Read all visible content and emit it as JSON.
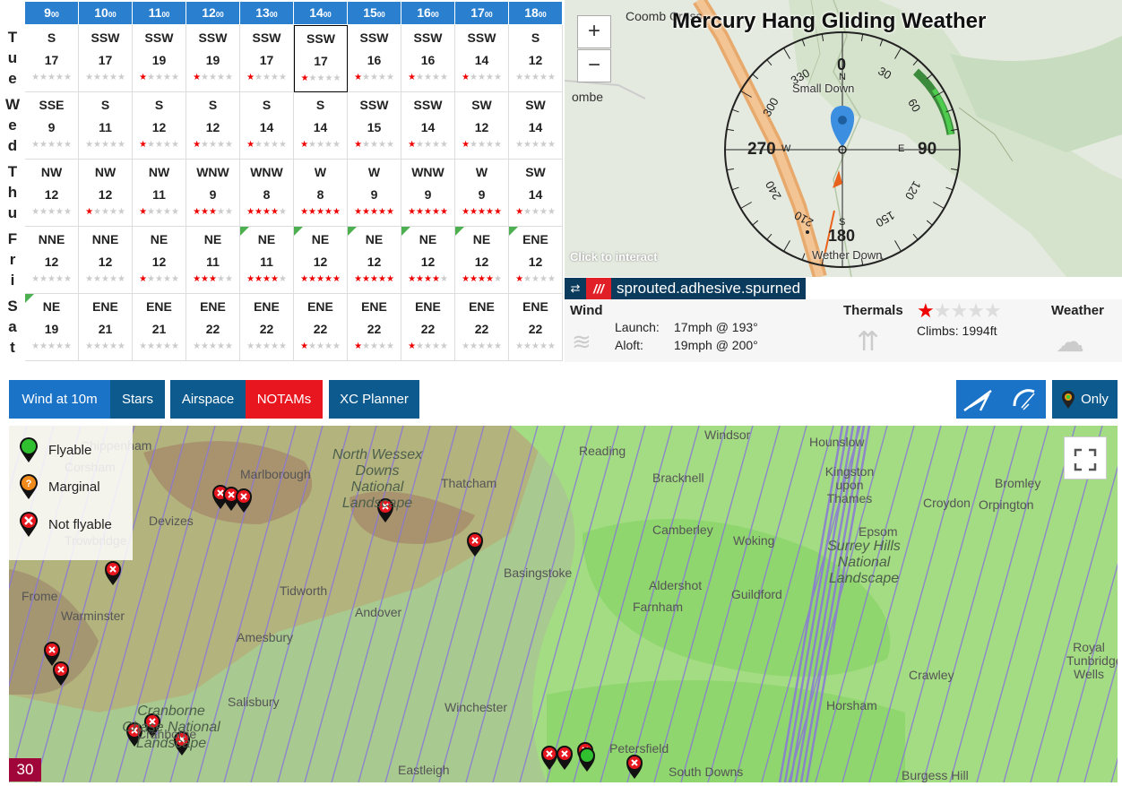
{
  "forecast": {
    "hours": [
      "9",
      "10",
      "11",
      "12",
      "13",
      "14",
      "15",
      "16",
      "17",
      "18"
    ],
    "hour_suffix": "00",
    "days": [
      {
        "label": [
          "T",
          "u",
          "e"
        ],
        "cells": [
          {
            "dir": "S",
            "speed": "17",
            "stars": 0
          },
          {
            "dir": "SSW",
            "speed": "17",
            "stars": 0
          },
          {
            "dir": "SSW",
            "speed": "19",
            "stars": 1
          },
          {
            "dir": "SSW",
            "speed": "19",
            "stars": 1
          },
          {
            "dir": "SSW",
            "speed": "17",
            "stars": 1
          },
          {
            "dir": "SSW",
            "speed": "17",
            "stars": 1
          },
          {
            "dir": "SSW",
            "speed": "16",
            "stars": 1
          },
          {
            "dir": "SSW",
            "speed": "16",
            "stars": 1
          },
          {
            "dir": "SSW",
            "speed": "14",
            "stars": 1
          },
          {
            "dir": "S",
            "speed": "12",
            "stars": 0
          }
        ]
      },
      {
        "label": [
          "W",
          "e",
          "d"
        ],
        "cells": [
          {
            "dir": "SSE",
            "speed": "9",
            "stars": 0
          },
          {
            "dir": "S",
            "speed": "11",
            "stars": 0
          },
          {
            "dir": "S",
            "speed": "12",
            "stars": 1
          },
          {
            "dir": "S",
            "speed": "12",
            "stars": 1
          },
          {
            "dir": "S",
            "speed": "14",
            "stars": 1
          },
          {
            "dir": "S",
            "speed": "14",
            "stars": 1
          },
          {
            "dir": "SSW",
            "speed": "15",
            "stars": 1
          },
          {
            "dir": "SSW",
            "speed": "14",
            "stars": 1
          },
          {
            "dir": "SW",
            "speed": "12",
            "stars": 1
          },
          {
            "dir": "SW",
            "speed": "14",
            "stars": 0
          }
        ]
      },
      {
        "label": [
          "T",
          "h",
          "u"
        ],
        "cells": [
          {
            "dir": "NW",
            "speed": "12",
            "stars": 0
          },
          {
            "dir": "NW",
            "speed": "12",
            "stars": 1
          },
          {
            "dir": "NW",
            "speed": "11",
            "stars": 1
          },
          {
            "dir": "WNW",
            "speed": "9",
            "stars": 3
          },
          {
            "dir": "WNW",
            "speed": "8",
            "stars": 4
          },
          {
            "dir": "W",
            "speed": "8",
            "stars": 5
          },
          {
            "dir": "W",
            "speed": "9",
            "stars": 5
          },
          {
            "dir": "WNW",
            "speed": "9",
            "stars": 5
          },
          {
            "dir": "W",
            "speed": "9",
            "stars": 5
          },
          {
            "dir": "SW",
            "speed": "14",
            "stars": 1
          }
        ]
      },
      {
        "label": [
          "F",
          "r",
          "i"
        ],
        "cells": [
          {
            "dir": "NNE",
            "speed": "12",
            "stars": 0
          },
          {
            "dir": "NNE",
            "speed": "12",
            "stars": 0
          },
          {
            "dir": "NE",
            "speed": "12",
            "stars": 1
          },
          {
            "dir": "NE",
            "speed": "11",
            "stars": 3
          },
          {
            "dir": "NE",
            "speed": "11",
            "stars": 4,
            "flag": true
          },
          {
            "dir": "NE",
            "speed": "12",
            "stars": 5,
            "flag": true
          },
          {
            "dir": "NE",
            "speed": "12",
            "stars": 5,
            "flag": true
          },
          {
            "dir": "NE",
            "speed": "12",
            "stars": 4,
            "flag": true
          },
          {
            "dir": "NE",
            "speed": "12",
            "stars": 4,
            "flag": true
          },
          {
            "dir": "ENE",
            "speed": "12",
            "stars": 1,
            "flag": true
          }
        ]
      },
      {
        "label": [
          "S",
          "a",
          "t"
        ],
        "cells": [
          {
            "dir": "NE",
            "speed": "19",
            "stars": 0,
            "flag": true
          },
          {
            "dir": "ENE",
            "speed": "21",
            "stars": 0
          },
          {
            "dir": "ENE",
            "speed": "21",
            "stars": 0
          },
          {
            "dir": "ENE",
            "speed": "22",
            "stars": 0
          },
          {
            "dir": "ENE",
            "speed": "22",
            "stars": 0
          },
          {
            "dir": "ENE",
            "speed": "22",
            "stars": 1
          },
          {
            "dir": "ENE",
            "speed": "22",
            "stars": 1
          },
          {
            "dir": "ENE",
            "speed": "22",
            "stars": 1
          },
          {
            "dir": "ENE",
            "speed": "22",
            "stars": 0
          },
          {
            "dir": "ENE",
            "speed": "22",
            "stars": 0
          }
        ]
      }
    ]
  },
  "site": {
    "title": "Mercury Hang Gliding Weather",
    "zoom_in": "+",
    "zoom_out": "−",
    "click_hint": "Click to interact",
    "compass": {
      "n": "0",
      "e": "90",
      "s": "180",
      "w": "270",
      "d30": "30",
      "d60": "60",
      "d120": "120",
      "d150": "150",
      "d210": "210",
      "d240": "240",
      "d300": "300",
      "d330": "330",
      "nl": "N",
      "el": "E",
      "sl": "S",
      "wl": "W"
    },
    "map_labels": {
      "top": "Small Down",
      "bottom": "Wether Down",
      "tl": "Coomb Cross",
      "tl2": "ombe"
    },
    "w3w": {
      "slashes": "///",
      "words": "sprouted.adhesive.spurned"
    },
    "wind": {
      "label": "Wind",
      "launch_label": "Launch:",
      "launch_value": "17mph @ 193°",
      "aloft_label": "Aloft:",
      "aloft_value": "19mph @ 200°"
    },
    "thermals": {
      "label": "Thermals",
      "climbs": "Climbs: 1994ft",
      "stars": 1
    },
    "weather": {
      "label": "Weather"
    }
  },
  "toolbar": {
    "wind": "Wind at 10m",
    "stars": "Stars",
    "airspace": "Airspace",
    "notams": "NOTAMs",
    "xc": "XC Planner",
    "only": "Only",
    "colors": {
      "primary": "#0d5a8f",
      "dark": "#0a3a5c",
      "active": "#1a73c7",
      "notams": "#e8161f"
    }
  },
  "legend": {
    "flyable": "Flyable",
    "marginal": "Marginal",
    "notflyable": "Not flyable",
    "marginal_glyph": "?"
  },
  "map": {
    "badge": "30",
    "places": [
      {
        "t": "Reading"
      },
      {
        "t": "Windsor"
      },
      {
        "t": "Hounslow"
      },
      {
        "t": "Kingston upon Thames"
      },
      {
        "t": "Bromley"
      },
      {
        "t": "Marlborough"
      },
      {
        "t": "Thatcham"
      },
      {
        "t": "Bracknell"
      },
      {
        "t": "Croydon"
      },
      {
        "t": "Orpington"
      },
      {
        "t": "Devizes"
      },
      {
        "t": "Trowbridge"
      },
      {
        "t": "Camberley"
      },
      {
        "t": "Woking"
      },
      {
        "t": "Epsom"
      },
      {
        "t": "Basingstoke"
      },
      {
        "t": "Aldershot"
      },
      {
        "t": "Guildford"
      },
      {
        "t": "Frome"
      },
      {
        "t": "Tidworth"
      },
      {
        "t": "Andover"
      },
      {
        "t": "Farnham"
      },
      {
        "t": "Warminster"
      },
      {
        "t": "Amesbury"
      },
      {
        "t": "Royal Tunbridge Wells"
      },
      {
        "t": "Salisbury"
      },
      {
        "t": "Crawley"
      },
      {
        "t": "Winchester"
      },
      {
        "t": "Horsham"
      },
      {
        "t": "Cranborne"
      },
      {
        "t": "Petersfield"
      },
      {
        "t": "Eastleigh"
      },
      {
        "t": "South Downs"
      },
      {
        "t": "Burgess Hill"
      },
      {
        "t": "Chippenham"
      },
      {
        "t": "Corsham"
      }
    ],
    "areas": [
      "North Wessex Downs National Landscape",
      "Surrey Hills National Landscape",
      "Cranborne Chase National Landscape"
    ]
  }
}
